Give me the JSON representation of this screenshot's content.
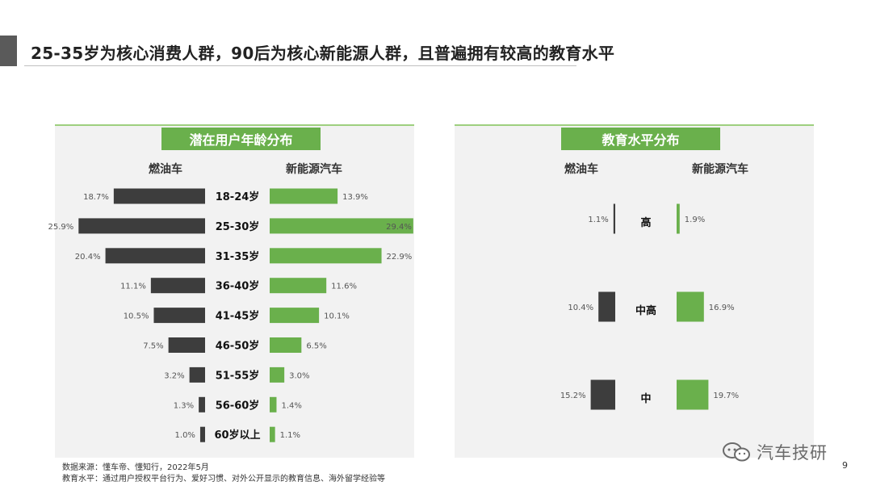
{
  "slide": {
    "title": "25-35岁为核心消费人群，90后为核心新能源人群，且普遍拥有较高的教育水平",
    "page_number": "9",
    "watermark": "汽车技研",
    "source_line": "数据来源：懂车帝、懂知行，2022年5月",
    "education_note": "教育水平：通过用户授权平台行为、爱好习惯、对外公开显示的教育信息、海外留学经验等"
  },
  "colors": {
    "fuel": "#3d3d3d",
    "ev": "#6ab04c",
    "banner": "#6ab04c",
    "panel": "#f2f2f2"
  },
  "chart_data": [
    {
      "type": "bar",
      "title": "潜在用户年龄分布",
      "orientation": "horizontal-butterfly",
      "categories": [
        "18-24岁",
        "25-30岁",
        "31-35岁",
        "36-40岁",
        "41-45岁",
        "46-50岁",
        "51-55岁",
        "56-60岁",
        "60岁以上"
      ],
      "series": [
        {
          "name": "燃油车",
          "values": [
            18.7,
            25.9,
            20.4,
            11.1,
            10.5,
            7.5,
            3.2,
            1.3,
            1.0
          ],
          "labels": [
            "18.7%",
            "25.9%",
            "20.4%",
            "11.1%",
            "10.5%",
            "7.5%",
            "3.2%",
            "1.3%",
            "1.0%"
          ]
        },
        {
          "name": "新能源汽车",
          "values": [
            13.9,
            29.4,
            22.9,
            11.6,
            10.1,
            6.5,
            3.0,
            1.4,
            1.1
          ],
          "labels": [
            "13.9%",
            "29.4%",
            "22.9%",
            "11.6%",
            "10.1%",
            "6.5%",
            "3.0%",
            "1.4%",
            "1.1%"
          ]
        }
      ]
    },
    {
      "type": "bar",
      "title": "教育水平分布",
      "orientation": "horizontal-butterfly",
      "categories": [
        "高",
        "中高",
        "中"
      ],
      "series": [
        {
          "name": "燃油车",
          "values": [
            1.1,
            10.4,
            15.2
          ],
          "labels": [
            "1.1%",
            "10.4%",
            "15.2%"
          ]
        },
        {
          "name": "新能源汽车",
          "values": [
            1.9,
            16.9,
            19.7
          ],
          "labels": [
            "1.9%",
            "16.9%",
            "19.7%"
          ]
        }
      ]
    }
  ]
}
